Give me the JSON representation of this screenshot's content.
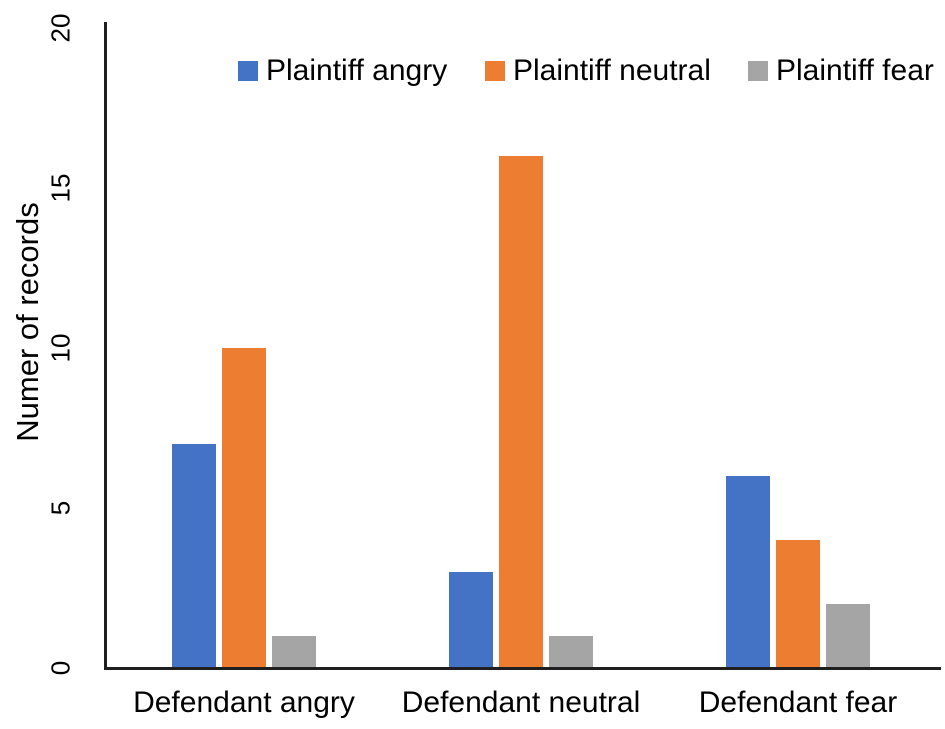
{
  "chart_data": {
    "type": "bar",
    "title": "",
    "categories": [
      "Defendant angry",
      "Defendant neutral",
      "Defendant fear"
    ],
    "series": [
      {
        "name": "Plaintiff angry",
        "color": "#4472C4",
        "values": [
          7,
          3,
          6
        ]
      },
      {
        "name": "Plaintiff neutral",
        "color": "#ED7D31",
        "values": [
          10,
          16,
          4
        ]
      },
      {
        "name": "Plaintiff fear",
        "color": "#A5A5A5",
        "values": [
          1,
          1,
          2
        ]
      }
    ],
    "xlabel": "",
    "ylabel": "Numer of records",
    "ylim": [
      0,
      20
    ],
    "yticks": [
      "0",
      "5",
      "10",
      "15",
      "20"
    ],
    "grid": false,
    "legend_position": "top",
    "axis_color": "#1f1f1f",
    "text_color": "#000000",
    "background": "#ffffff"
  }
}
